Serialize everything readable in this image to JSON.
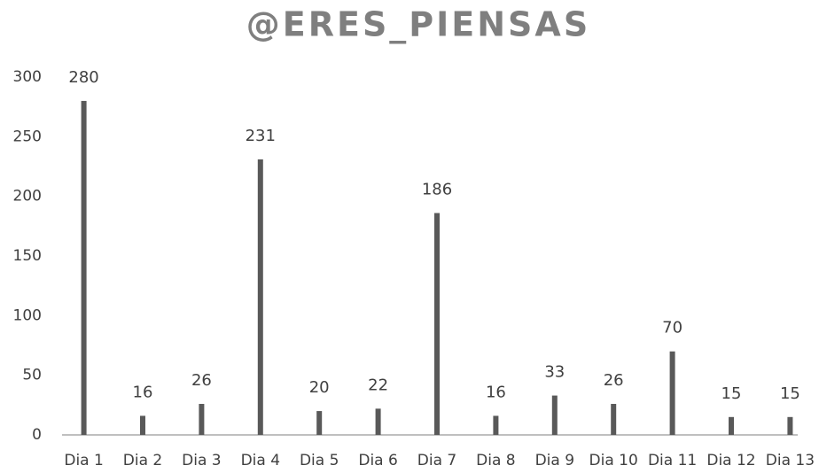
{
  "chart_data": {
    "type": "bar",
    "title": "@ERES_PIENSAS",
    "categories": [
      "Dia 1",
      "Dia 2",
      "Dia 3",
      "Dia 4",
      "Dia 5",
      "Dia 6",
      "Dia 7",
      "Dia 8",
      "Dia 9",
      "Dia 10",
      "Dia 11",
      "Dia 12",
      "Dia 13"
    ],
    "values": [
      280,
      16,
      26,
      231,
      20,
      22,
      186,
      16,
      33,
      26,
      70,
      15,
      15
    ],
    "color": "#595959",
    "ylim": [
      0,
      300
    ],
    "yticks": [
      0,
      50,
      100,
      150,
      200,
      250,
      300
    ],
    "grid": false,
    "data_labels": true
  }
}
